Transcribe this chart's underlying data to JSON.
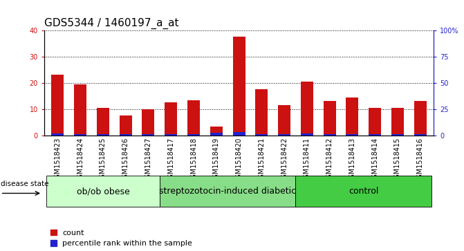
{
  "title": "GDS5344 / 1460197_a_at",
  "samples": [
    "GSM1518423",
    "GSM1518424",
    "GSM1518425",
    "GSM1518426",
    "GSM1518427",
    "GSM1518417",
    "GSM1518418",
    "GSM1518419",
    "GSM1518420",
    "GSM1518421",
    "GSM1518422",
    "GSM1518411",
    "GSM1518412",
    "GSM1518413",
    "GSM1518414",
    "GSM1518415",
    "GSM1518416"
  ],
  "counts": [
    23,
    19.5,
    10.5,
    7.5,
    10,
    12.5,
    13.5,
    3.5,
    37.5,
    17.5,
    11.5,
    20.5,
    13,
    14.5,
    10.5,
    10.5,
    13
  ],
  "percentile": [
    2,
    1.5,
    1.5,
    1,
    1,
    1.5,
    1.5,
    2.5,
    3,
    1,
    1,
    2,
    1,
    1,
    1,
    1,
    1
  ],
  "groups": [
    {
      "label": "ob/ob obese",
      "start": 0,
      "end": 5,
      "color": "#ccffcc"
    },
    {
      "label": "streptozotocin-induced diabetic",
      "start": 5,
      "end": 11,
      "color": "#88dd88"
    },
    {
      "label": "control",
      "start": 11,
      "end": 17,
      "color": "#44cc44"
    }
  ],
  "ylim_left": [
    0,
    40
  ],
  "ylim_right": [
    0,
    100
  ],
  "yticks_left": [
    0,
    10,
    20,
    30,
    40
  ],
  "yticks_right": [
    0,
    25,
    50,
    75,
    100
  ],
  "ytick_labels_right": [
    "0",
    "25",
    "50",
    "75",
    "100%"
  ],
  "bar_color_count": "#cc1111",
  "bar_color_pct": "#2222cc",
  "bar_width": 0.55,
  "bg_plot": "#ffffff",
  "bg_xticklabel": "#d8d8d8",
  "title_fontsize": 11,
  "tick_fontsize": 7,
  "legend_fontsize": 8,
  "group_fontsize": 9,
  "disease_state_label": "disease state"
}
